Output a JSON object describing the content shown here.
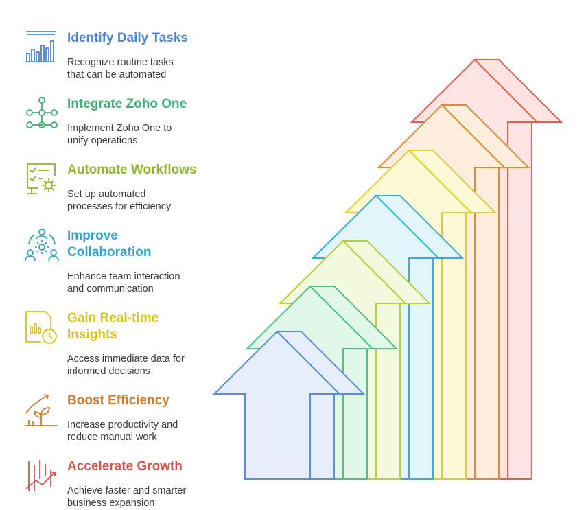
{
  "steps": [
    {
      "title": "Identify Daily Tasks",
      "desc_line1": "Recognize routine tasks",
      "desc_line2": "that can be automated",
      "icon": "bar-chart-icon",
      "color": "#4a86d4"
    },
    {
      "title": "Integrate Zoho One",
      "desc_line1": "Implement Zoho One to",
      "desc_line2": "unify operations",
      "icon": "network-icon",
      "color": "#3cb371"
    },
    {
      "title": "Automate Workflows",
      "desc_line1": "Set up automated",
      "desc_line2": "processes for efficiency",
      "icon": "checklist-gear-icon",
      "color": "#8fb52a"
    },
    {
      "title_line1": "Improve",
      "title_line2": "Collaboration",
      "desc_line1": "Enhance team interaction",
      "desc_line2": "and communication",
      "icon": "team-gear-icon",
      "color": "#2ea6cf"
    },
    {
      "title_line1": "Gain Real-time",
      "title_line2": "Insights",
      "desc_line1": "Access immediate data for",
      "desc_line2": "informed decisions",
      "icon": "report-clock-icon",
      "color": "#d9c21c"
    },
    {
      "title": "Boost Efficiency",
      "desc_line1": "Increase productivity and",
      "desc_line2": "reduce manual work",
      "icon": "growth-plant-icon",
      "color": "#d97a2b"
    },
    {
      "title": "Accelerate Growth",
      "desc_line1": "Achieve faster and smarter",
      "desc_line2": "business expansion",
      "icon": "trend-up-icon",
      "color": "#d9534f"
    }
  ]
}
